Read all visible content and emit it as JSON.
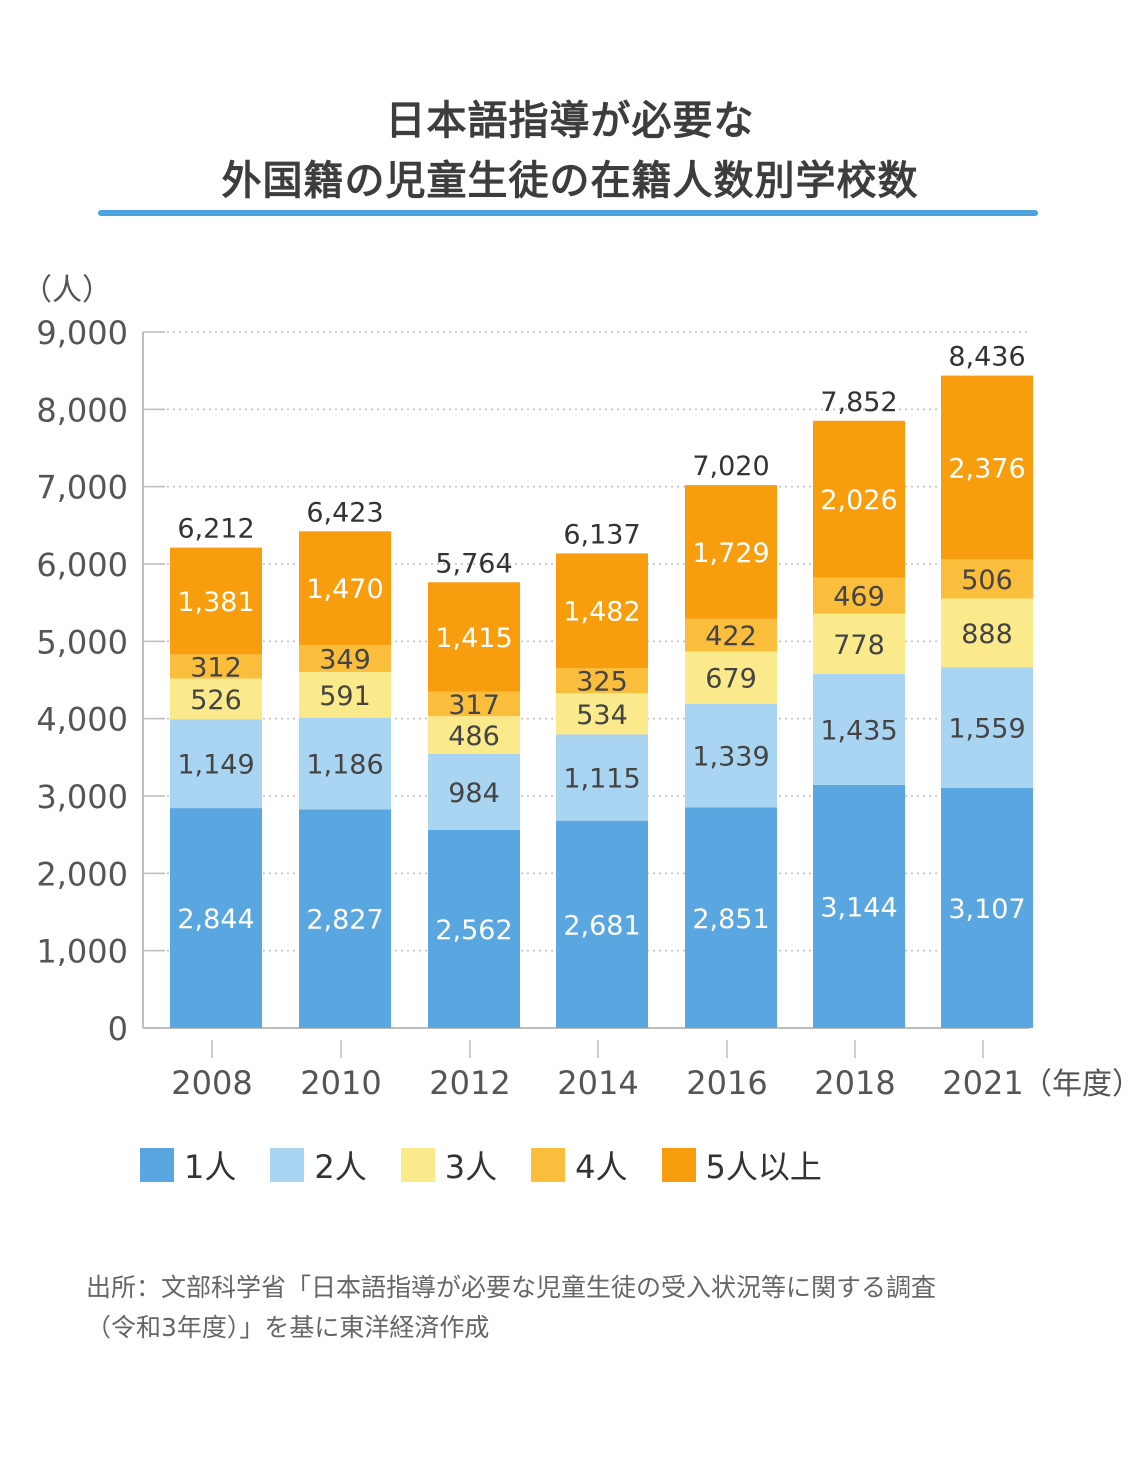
{
  "header": {
    "title_line1": "日本語指導が必要な",
    "title_line2": "外国籍の児童生徒の在籍人数別学校数"
  },
  "chart_data": {
    "type": "bar",
    "stacked": true,
    "categories": [
      "2008",
      "2010",
      "2012",
      "2014",
      "2016",
      "2018",
      "2021"
    ],
    "x_unit": "（年度）",
    "y_unit": "（人）",
    "ylim": [
      0,
      9000
    ],
    "yticks": [
      "0",
      "1,000",
      "2,000",
      "3,000",
      "4,000",
      "5,000",
      "6,000",
      "7,000",
      "8,000",
      "9,000"
    ],
    "grid": true,
    "legend_position": "bottom",
    "series": [
      {
        "name": "1人",
        "color": "#5aa6e0",
        "label_color": "#ffffff",
        "values": [
          2844,
          2827,
          2562,
          2681,
          2851,
          3144,
          3107
        ],
        "labels": [
          "2,844",
          "2,827",
          "2,562",
          "2,681",
          "2,851",
          "3,144",
          "3,107"
        ]
      },
      {
        "name": "2人",
        "color": "#a9d5f3",
        "label_color": "#444444",
        "values": [
          1149,
          1186,
          984,
          1115,
          1339,
          1435,
          1559
        ],
        "labels": [
          "1,149",
          "1,186",
          "984",
          "1,115",
          "1,339",
          "1,435",
          "1,559"
        ]
      },
      {
        "name": "3人",
        "color": "#faea8c",
        "label_color": "#444444",
        "values": [
          526,
          591,
          486,
          534,
          679,
          778,
          888
        ],
        "labels": [
          "526",
          "591",
          "486",
          "534",
          "679",
          "778",
          "888"
        ]
      },
      {
        "name": "4人",
        "color": "#fbbd3c",
        "label_color": "#444444",
        "values": [
          312,
          349,
          317,
          325,
          422,
          469,
          506
        ],
        "labels": [
          "312",
          "349",
          "317",
          "325",
          "422",
          "469",
          "506"
        ]
      },
      {
        "name": "5人以上",
        "color": "#f89d0e",
        "label_color": "#ffffff",
        "values": [
          1381,
          1470,
          1415,
          1482,
          1729,
          2026,
          2376
        ],
        "labels": [
          "1,381",
          "1,470",
          "1,415",
          "1,482",
          "1,729",
          "2,026",
          "2,376"
        ]
      }
    ],
    "totals": [
      6212,
      6423,
      5764,
      6137,
      7020,
      7852,
      8436
    ],
    "total_labels": [
      "6,212",
      "6,423",
      "5,764",
      "6,137",
      "7,020",
      "7,852",
      "8,436"
    ]
  },
  "source": {
    "line1": "出所：文部科学省「日本語指導が必要な児童生徒の受入状況等に関する調査",
    "line2": "（令和3年度）」を基に東洋経済作成"
  }
}
